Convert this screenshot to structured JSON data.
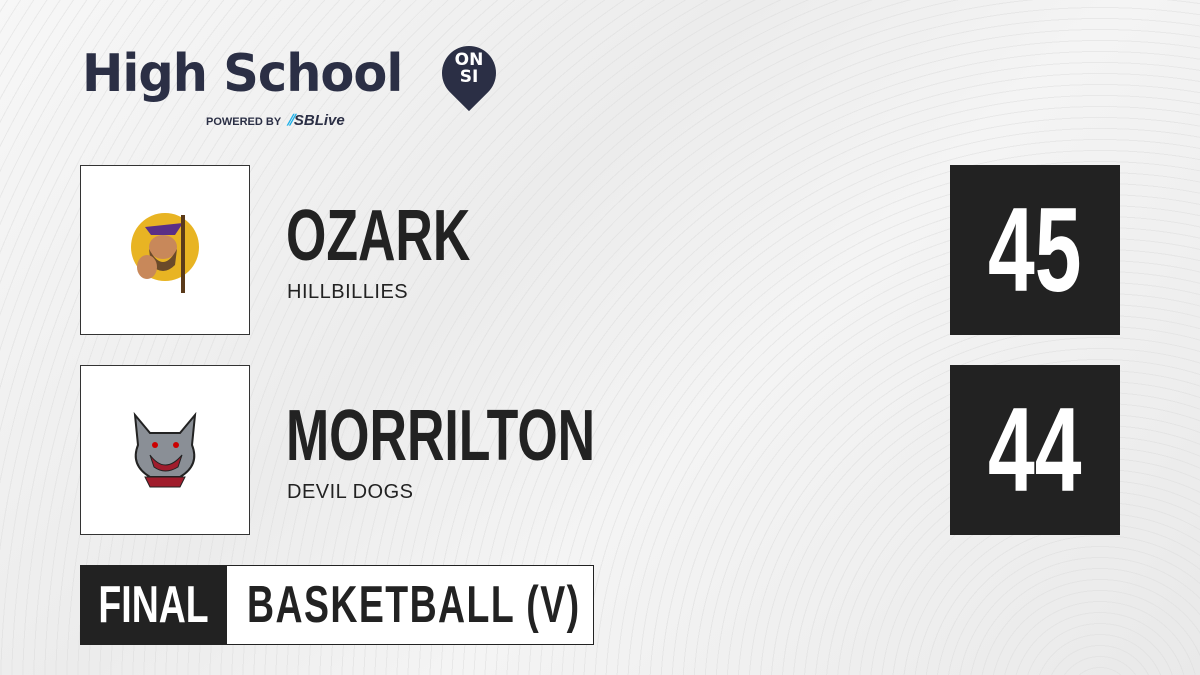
{
  "brand": {
    "title": "High School",
    "badge_top": "ON",
    "badge_bottom": "SI",
    "powered_by": "POWERED BY",
    "partner": "SBLive"
  },
  "teams": [
    {
      "name": "OZARK",
      "mascot": "HILLBILLIES",
      "score": "45",
      "logo_icon": "hillbilly-mascot-icon",
      "logo_color": "#e8b423"
    },
    {
      "name": "MORRILTON",
      "mascot": "DEVIL DOGS",
      "score": "44",
      "logo_icon": "devil-dog-mascot-icon",
      "logo_color": "#8a8f96"
    }
  ],
  "status": "FINAL",
  "sport": "BASKETBALL (V)",
  "colors": {
    "dark": "#222222",
    "brand": "#2b2f45",
    "accent": "#1eb0e8"
  }
}
